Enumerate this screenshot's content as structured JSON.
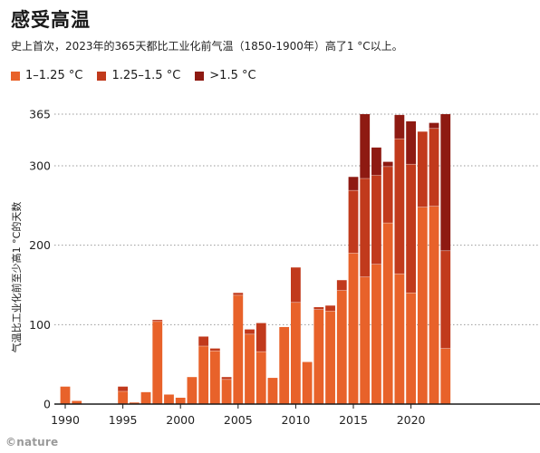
{
  "title": "感受高温",
  "subtitle": "史上首次，2023年的365天都比工业化前气温（1850-1900年）高了1 °C以上。",
  "logo": "©nature",
  "legend": [
    {
      "label": "1–1.25 °C",
      "color": "#e8622a"
    },
    {
      "label": "1.25–1.5 °C",
      "color": "#c13a1c"
    },
    {
      "label": ">1.5 °C",
      "color": "#8e1a12"
    }
  ],
  "chart_data": {
    "type": "bar",
    "stacked": true,
    "ylabel": "气温比工业化前至少高1 °C的天数",
    "xlabel": "",
    "ylim": [
      0,
      365
    ],
    "yticks": [
      0,
      100,
      200,
      300,
      365
    ],
    "xticks": [
      1990,
      1995,
      2000,
      2005,
      2010,
      2015,
      2020
    ],
    "x": [
      1990,
      1991,
      1992,
      1993,
      1994,
      1995,
      1996,
      1997,
      1998,
      1999,
      2000,
      2001,
      2002,
      2003,
      2004,
      2005,
      2006,
      2007,
      2008,
      2009,
      2010,
      2011,
      2012,
      2013,
      2014,
      2015,
      2016,
      2017,
      2018,
      2019,
      2020,
      2021,
      2022,
      2023
    ],
    "series": [
      {
        "name": "1–1.25 °C",
        "color": "#e8622a",
        "values": [
          22,
          4,
          0,
          0,
          0,
          16,
          2,
          15,
          104,
          12,
          8,
          34,
          73,
          67,
          31,
          137,
          88,
          66,
          33,
          97,
          128,
          53,
          119,
          117,
          143,
          190,
          160,
          176,
          228,
          164,
          140,
          248,
          249,
          70
        ]
      },
      {
        "name": "1.25–1.5 °C",
        "color": "#c13a1c",
        "values": [
          0,
          0,
          0,
          0,
          0,
          6,
          0,
          0,
          2,
          0,
          0,
          0,
          12,
          3,
          3,
          3,
          6,
          36,
          0,
          0,
          44,
          0,
          3,
          7,
          13,
          79,
          124,
          112,
          71,
          170,
          162,
          95,
          98,
          123
        ]
      },
      {
        "name": ">1.5 °C",
        "color": "#8e1a12",
        "values": [
          0,
          0,
          0,
          0,
          0,
          0,
          0,
          0,
          0,
          0,
          0,
          0,
          0,
          0,
          0,
          0,
          0,
          0,
          0,
          0,
          0,
          0,
          0,
          0,
          0,
          17,
          81,
          35,
          6,
          30,
          54,
          0,
          7,
          172
        ]
      }
    ],
    "grid": true
  }
}
